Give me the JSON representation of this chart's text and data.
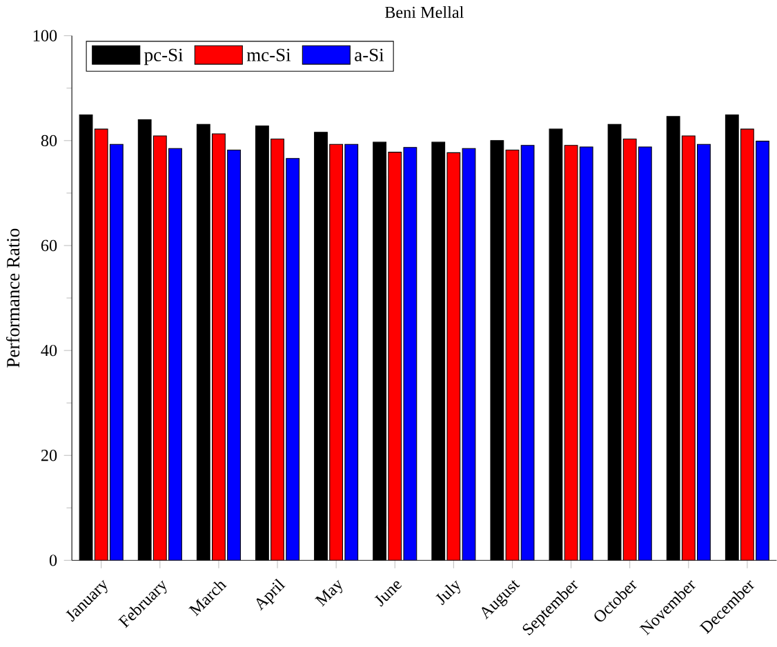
{
  "chart_data": {
    "type": "bar",
    "title": "Beni Mellal",
    "ylabel": "Performance Ratio",
    "categories": [
      "January",
      "February",
      "March",
      "April",
      "May",
      "June",
      "July",
      "August",
      "September",
      "October",
      "November",
      "December"
    ],
    "series": [
      {
        "name": "pc-Si",
        "color": "#000000",
        "values": [
          84.9,
          84.0,
          83.1,
          82.8,
          81.6,
          79.7,
          79.7,
          80.0,
          82.2,
          83.1,
          84.6,
          84.9
        ]
      },
      {
        "name": "mc-Si",
        "color": "#ff0000",
        "values": [
          82.2,
          80.9,
          81.3,
          80.3,
          79.3,
          77.8,
          77.7,
          78.2,
          79.1,
          80.3,
          80.9,
          82.2
        ]
      },
      {
        "name": "a-Si",
        "color": "#0000ff",
        "values": [
          79.3,
          78.5,
          78.2,
          76.6,
          79.3,
          78.7,
          78.5,
          79.1,
          78.8,
          78.8,
          79.3,
          79.9
        ]
      }
    ],
    "ylim": [
      0,
      100
    ],
    "yticks": [
      0,
      20,
      40,
      60,
      80,
      100
    ],
    "legend": "top left",
    "grid": false
  }
}
